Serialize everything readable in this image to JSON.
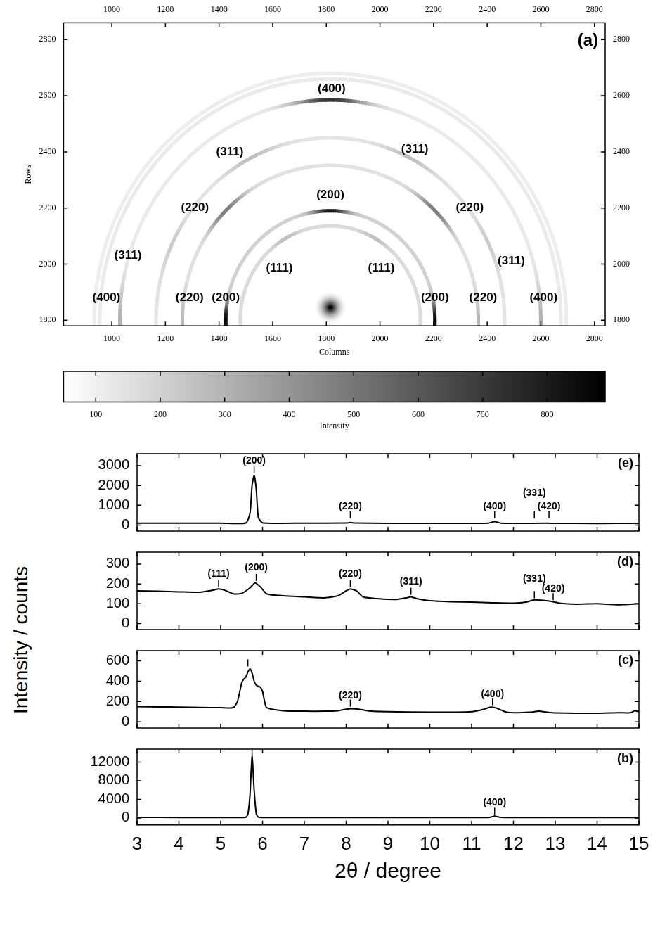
{
  "chart_data": [
    {
      "type": "image",
      "panel": "(a)",
      "x_label": "Columns",
      "y_label": "Rows",
      "xlim": [
        820,
        2840
      ],
      "ylim": [
        1780,
        2860
      ],
      "xticks": [
        1000,
        1200,
        1400,
        1600,
        1800,
        2000,
        2200,
        2400,
        2600,
        2800
      ],
      "yticks": [
        1800,
        2000,
        2200,
        2400,
        2600,
        2800
      ],
      "center": [
        1815,
        1800
      ],
      "center_intensity": 860,
      "rings": [
        {
          "radius": 336,
          "intensity": 170,
          "spots": [
            {
              "angle": 60,
              "intensity": 260
            },
            {
              "angle": 120,
              "intensity": 260
            }
          ]
        },
        {
          "radius": 390,
          "intensity": 200,
          "spots": [
            {
              "angle": 0,
              "intensity": 860
            },
            {
              "angle": 180,
              "intensity": 860
            },
            {
              "angle": 90,
              "intensity": 820
            }
          ]
        },
        {
          "radius": 552,
          "intensity": 150,
          "spots": [
            {
              "angle": 45,
              "intensity": 480
            },
            {
              "angle": 135,
              "intensity": 480
            },
            {
              "angle": 0,
              "intensity": 280
            },
            {
              "angle": 180,
              "intensity": 280
            }
          ]
        },
        {
          "radius": 650,
          "intensity": 140,
          "spots": [
            {
              "angle": 63,
              "intensity": 260
            },
            {
              "angle": 117,
              "intensity": 260
            },
            {
              "angle": 25,
              "intensity": 220
            },
            {
              "angle": 155,
              "intensity": 220
            }
          ]
        },
        {
          "radius": 785,
          "intensity": 120,
          "spots": [
            {
              "angle": 90,
              "intensity": 720
            },
            {
              "angle": 0,
              "intensity": 300
            },
            {
              "angle": 180,
              "intensity": 300
            }
          ]
        },
        {
          "radius": 860,
          "intensity": 120
        },
        {
          "radius": 880,
          "intensity": 110
        }
      ],
      "annotations": [
        {
          "text": "(400)",
          "x": 1820,
          "y": 2625
        },
        {
          "text": "(311)",
          "x": 1440,
          "y": 2400
        },
        {
          "text": "(311)",
          "x": 2130,
          "y": 2410
        },
        {
          "text": "(220)",
          "x": 1310,
          "y": 2200
        },
        {
          "text": "(200)",
          "x": 1815,
          "y": 2245
        },
        {
          "text": "(220)",
          "x": 2335,
          "y": 2200
        },
        {
          "text": "(311)",
          "x": 1060,
          "y": 2030
        },
        {
          "text": "(311)",
          "x": 2490,
          "y": 2010
        },
        {
          "text": "(111)",
          "x": 1625,
          "y": 1985
        },
        {
          "text": "(111)",
          "x": 2005,
          "y": 1985
        },
        {
          "text": "(400)",
          "x": 980,
          "y": 1880
        },
        {
          "text": "(220)",
          "x": 1290,
          "y": 1880
        },
        {
          "text": "(200)",
          "x": 1425,
          "y": 1880
        },
        {
          "text": "(200)",
          "x": 2205,
          "y": 1880
        },
        {
          "text": "(220)",
          "x": 2385,
          "y": 1880
        },
        {
          "text": "(400)",
          "x": 2610,
          "y": 1880
        }
      ],
      "colorbar": {
        "label": "Intensity",
        "range": [
          50,
          890
        ],
        "ticks": [
          100,
          200,
          300,
          400,
          500,
          600,
          700,
          800
        ]
      }
    },
    {
      "type": "line",
      "panel": "(e)",
      "y_label": "Intensity / counts",
      "color": "#000000",
      "tick_labels": "y",
      "x": [
        3,
        4,
        5,
        5.6,
        5.7,
        5.75,
        5.8,
        5.85,
        5.9,
        6,
        7,
        8,
        8.1,
        8.2,
        9,
        10,
        11,
        11.4,
        11.55,
        11.7,
        12,
        12.8,
        13,
        14,
        15
      ],
      "values": [
        100,
        100,
        100,
        110,
        600,
        2000,
        2500,
        1800,
        400,
        120,
        100,
        110,
        130,
        110,
        90,
        90,
        90,
        100,
        180,
        100,
        90,
        95,
        90,
        85,
        90
      ],
      "xlim": [
        3,
        15
      ],
      "xticks": [
        3,
        4,
        5,
        6,
        7,
        8,
        9,
        10,
        11,
        12,
        13,
        14,
        15
      ],
      "ylim": [
        -300,
        3600
      ],
      "yticks": [
        0,
        1000,
        2000,
        3000
      ],
      "peaks": [
        {
          "label": "(200)",
          "x": 5.8,
          "y": 2600,
          "text_y": 3000
        },
        {
          "label": "(220)",
          "x": 8.1,
          "y": 350,
          "text_y": 700
        },
        {
          "label": "(400)",
          "x": 11.55,
          "y": 350,
          "text_y": 700
        },
        {
          "label": "(331)",
          "x": 12.5,
          "y": 350,
          "text_y": 1350
        },
        {
          "label": "(420)",
          "x": 12.85,
          "y": 350,
          "text_y": 700
        }
      ]
    },
    {
      "type": "line",
      "panel": "(d)",
      "color": "#000000",
      "tick_labels": "y",
      "x": [
        3,
        3.5,
        4,
        4.5,
        4.8,
        4.95,
        5.1,
        5.3,
        5.5,
        5.7,
        5.82,
        5.95,
        6.1,
        6.5,
        7,
        7.5,
        7.8,
        8.0,
        8.1,
        8.25,
        8.4,
        8.8,
        9.2,
        9.45,
        9.55,
        9.7,
        10,
        10.5,
        11,
        11.5,
        12,
        12.3,
        12.5,
        12.7,
        12.9,
        13.1,
        13.5,
        14,
        14.5,
        15
      ],
      "values": [
        165,
        163,
        160,
        158,
        168,
        175,
        168,
        150,
        152,
        180,
        205,
        185,
        150,
        140,
        135,
        130,
        140,
        165,
        175,
        165,
        135,
        125,
        122,
        130,
        135,
        125,
        115,
        110,
        108,
        105,
        103,
        108,
        120,
        117,
        112,
        103,
        98,
        100,
        95,
        100
      ],
      "xlim": [
        3,
        15
      ],
      "xticks": [
        3,
        4,
        5,
        6,
        7,
        8,
        9,
        10,
        11,
        12,
        13,
        14,
        15
      ],
      "ylim": [
        -30,
        360
      ],
      "yticks": [
        0,
        100,
        200,
        300
      ],
      "peaks": [
        {
          "label": "(111)",
          "x": 4.95,
          "y": 185,
          "text_y": 225
        },
        {
          "label": "(200)",
          "x": 5.85,
          "y": 215,
          "text_y": 255
        },
        {
          "label": "(220)",
          "x": 8.1,
          "y": 185,
          "text_y": 225
        },
        {
          "label": "(311)",
          "x": 9.55,
          "y": 145,
          "text_y": 185
        },
        {
          "label": "(331)",
          "x": 12.5,
          "y": 128,
          "text_y": 200
        },
        {
          "label": "(420)",
          "x": 12.95,
          "y": 118,
          "text_y": 150
        }
      ]
    },
    {
      "type": "line",
      "panel": "(c)",
      "color": "#000000",
      "tick_labels": "y",
      "x": [
        3,
        3.5,
        4,
        4.5,
        5,
        5.3,
        5.4,
        5.5,
        5.55,
        5.6,
        5.65,
        5.7,
        5.75,
        5.8,
        5.85,
        5.9,
        5.95,
        6,
        6.05,
        6.1,
        6.5,
        7,
        7.5,
        7.8,
        8,
        8.1,
        8.3,
        8.6,
        9,
        10,
        10.5,
        11,
        11.3,
        11.45,
        11.6,
        11.8,
        12,
        12.4,
        12.6,
        12.8,
        13,
        14,
        14.5,
        14.8,
        14.9,
        15
      ],
      "values": [
        150,
        148,
        145,
        142,
        140,
        140,
        200,
        380,
        420,
        440,
        490,
        520,
        480,
        400,
        360,
        350,
        340,
        300,
        200,
        140,
        110,
        105,
        105,
        110,
        125,
        130,
        125,
        105,
        100,
        95,
        95,
        100,
        125,
        145,
        135,
        100,
        90,
        95,
        105,
        95,
        88,
        85,
        90,
        90,
        110,
        100
      ],
      "xlim": [
        3,
        15
      ],
      "xticks": [
        3,
        4,
        5,
        6,
        7,
        8,
        9,
        10,
        11,
        12,
        13,
        14,
        15
      ],
      "ylim": [
        -60,
        700
      ],
      "yticks": [
        0,
        200,
        400,
        600
      ],
      "peaks": [
        {
          "x": 5.65,
          "y": 545
        },
        {
          "label": "(220)",
          "x": 8.1,
          "y": 150,
          "text_y": 210
        },
        {
          "label": "(400)",
          "x": 11.5,
          "y": 165,
          "text_y": 225
        }
      ]
    },
    {
      "type": "line",
      "panel": "(b)",
      "x_label": "2θ / degree",
      "color": "#000000",
      "x": [
        3,
        4,
        5,
        5.5,
        5.6,
        5.65,
        5.7,
        5.75,
        5.8,
        5.85,
        5.9,
        6,
        7,
        8,
        9,
        10,
        11,
        11.4,
        11.5,
        11.55,
        11.6,
        11.7,
        12,
        13,
        14,
        15
      ],
      "values": [
        120,
        110,
        100,
        100,
        150,
        800,
        5000,
        13300,
        6000,
        900,
        200,
        100,
        90,
        90,
        90,
        90,
        90,
        100,
        300,
        420,
        300,
        120,
        90,
        90,
        90,
        90
      ],
      "xlim": [
        3,
        15
      ],
      "xticks": [
        3,
        4,
        5,
        6,
        7,
        8,
        9,
        10,
        11,
        12,
        13,
        14,
        15
      ],
      "ylim": [
        -1500,
        14800
      ],
      "yticks": [
        0,
        4000,
        8000,
        12000
      ],
      "peaks": [
        {
          "x": 5.75,
          "y": 13400
        },
        {
          "label": "(400)",
          "x": 11.55,
          "y": 700,
          "text_y": 2200
        }
      ]
    }
  ]
}
